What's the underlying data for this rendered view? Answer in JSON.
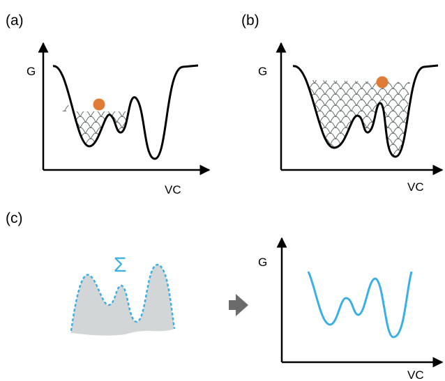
{
  "panels": {
    "a": {
      "label": "(a)",
      "y_axis_label": "G",
      "x_axis_label": "VC"
    },
    "b": {
      "label": "(b)",
      "y_axis_label": "G",
      "x_axis_label": "VC"
    },
    "c": {
      "label": "(c)",
      "sum_symbol": "Σ",
      "y_axis_label": "G",
      "x_axis_label": "VC"
    }
  },
  "colors": {
    "ink": "#000000",
    "ball": "#e07b35",
    "hills": "#5f6b69",
    "sum_blue": "#3aaee6",
    "filled_area": "#d2d6d6",
    "arrow": "#6b6b6b"
  }
}
